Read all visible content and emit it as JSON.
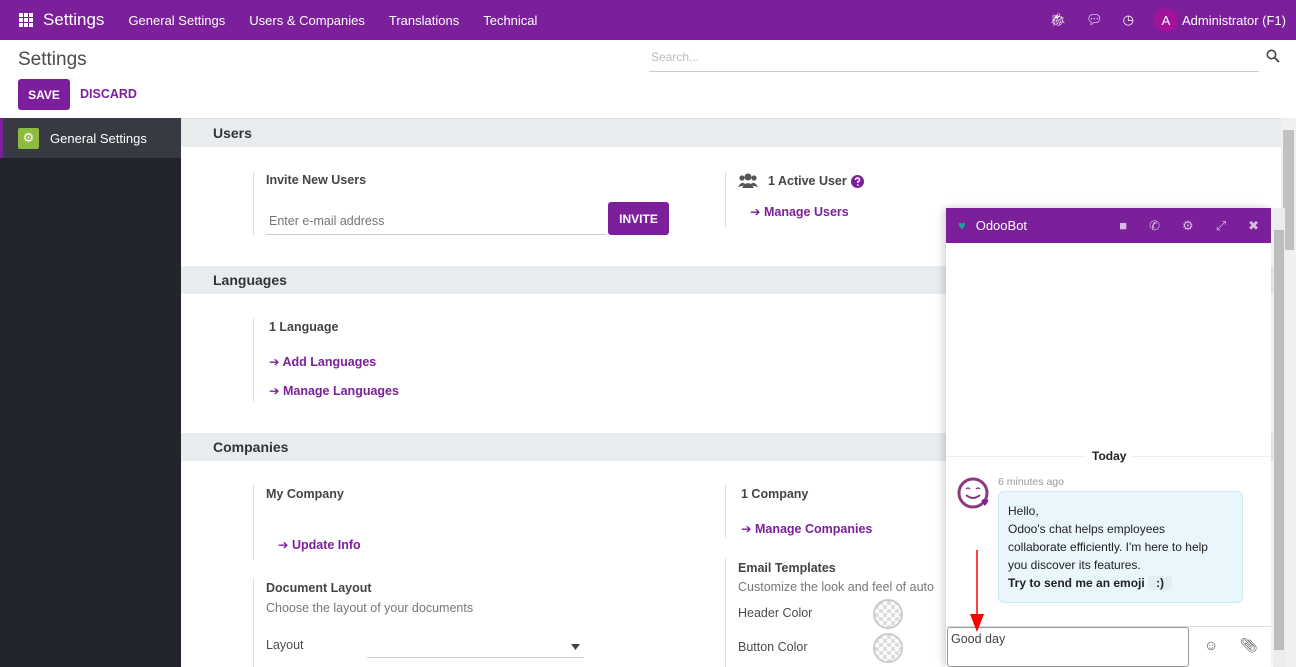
{
  "navbar": {
    "app": "Settings",
    "menus": [
      "General Settings",
      "Users & Companies",
      "Translations",
      "Technical"
    ],
    "user": "Administrator (F1)",
    "avatar_letter": "A",
    "icons": [
      "bug-icon",
      "chat-icon",
      "clock-icon"
    ]
  },
  "control": {
    "title": "Settings",
    "save": "SAVE",
    "discard": "DISCARD",
    "search_placeholder": "Search..."
  },
  "sidebar": {
    "items": [
      {
        "label": "General Settings",
        "icon": "gear-icon"
      }
    ]
  },
  "sections": {
    "users": {
      "title": "Users",
      "invite_label": "Invite New Users",
      "email_placeholder": "Enter e-mail address",
      "invite_btn": "INVITE",
      "active": "1 Active User",
      "manage": "Manage Users"
    },
    "languages": {
      "title": "Languages",
      "count": "1 Language",
      "add": "Add Languages",
      "manage": "Manage Languages"
    },
    "companies": {
      "title": "Companies",
      "my_company": "My Company",
      "update": "Update Info",
      "count": "1 Company",
      "manage": "Manage Companies",
      "doc_layout": "Document Layout",
      "doc_desc": "Choose the layout of your documents",
      "layout_label": "Layout",
      "email_templates": "Email Templates",
      "email_desc": "Customize the look and feel of auto",
      "header_color": "Header Color",
      "button_color": "Button Color"
    }
  },
  "chat": {
    "name": "OdooBot",
    "day": "Today",
    "time": "6 minutes ago",
    "message": [
      "Hello,",
      "Odoo's chat helps employees",
      "collaborate efficiently. I'm here to help",
      "you discover its features."
    ],
    "bold": "Try to send me an emoji",
    "emoji": ":)",
    "input": "Good day"
  },
  "colors": {
    "brand": "#7c1f9b",
    "sidebar": "#23252d",
    "annotation_arrow": "#ff0000"
  }
}
